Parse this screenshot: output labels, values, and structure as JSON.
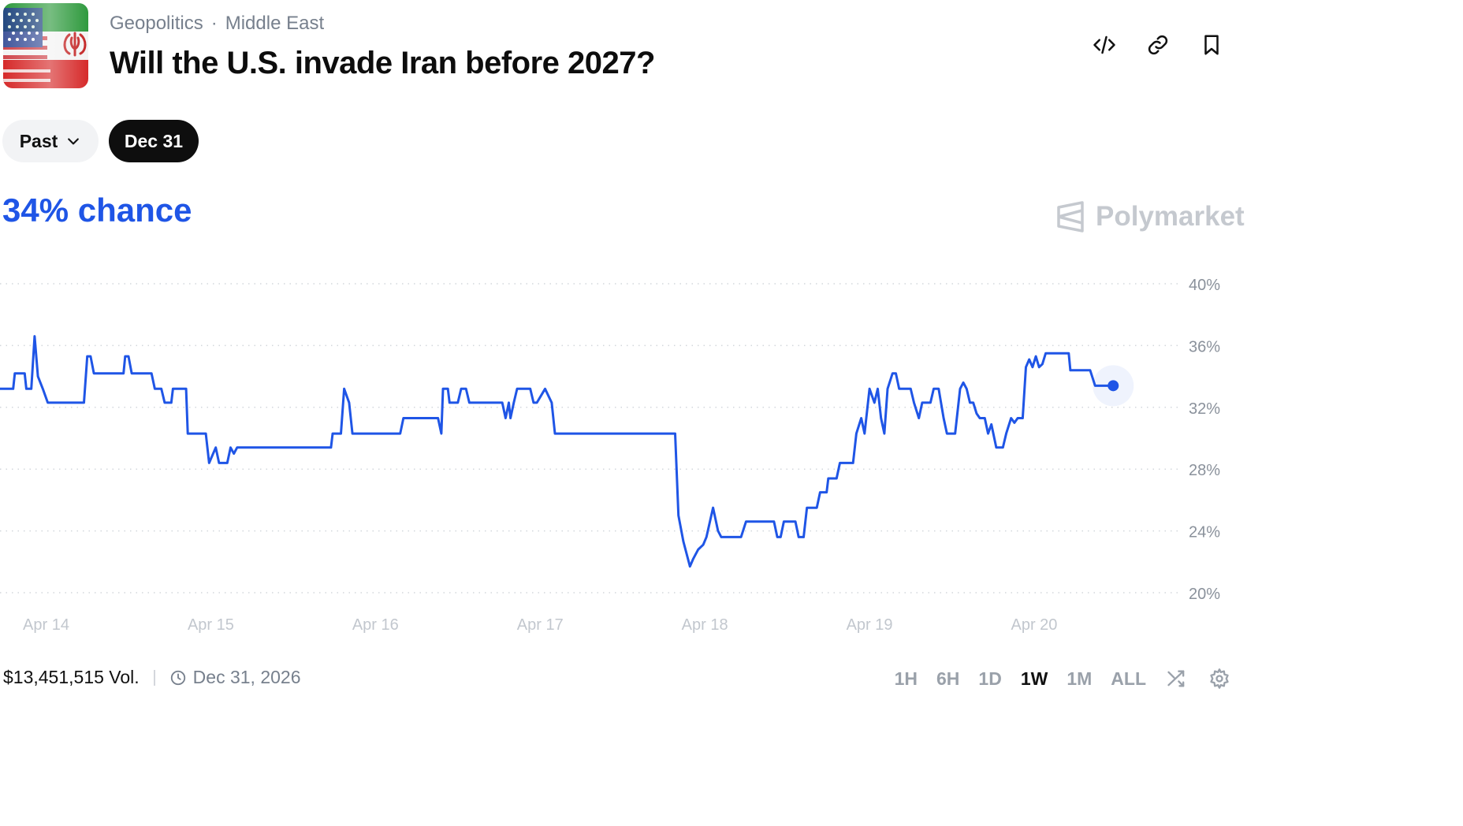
{
  "header": {
    "breadcrumb": [
      "Geopolitics",
      "Middle East"
    ],
    "breadcrumb_separator": "·",
    "title": "Will the U.S. invade Iran before 2027?",
    "actions": [
      {
        "icon": "embed-code-icon"
      },
      {
        "icon": "link-icon"
      },
      {
        "icon": "bookmark-icon"
      }
    ]
  },
  "filters": {
    "past_label": "Past",
    "selected_label": "Dec 31"
  },
  "headline": {
    "chance_label": "34% chance"
  },
  "brand": {
    "name": "Polymarket"
  },
  "chart_data": {
    "type": "line",
    "title": "",
    "xlabel": "",
    "ylabel": "",
    "x_ticks": [
      "Apr 14",
      "Apr 15",
      "Apr 16",
      "Apr 17",
      "Apr 18",
      "Apr 19",
      "Apr 20"
    ],
    "y_ticks": [
      "40%",
      "36%",
      "32%",
      "28%",
      "24%",
      "20%"
    ],
    "ylim": [
      20,
      40
    ],
    "xlim": [
      13.72,
      20.9
    ],
    "grid": true,
    "line_color": "#1f55e6",
    "series": [
      {
        "values": [
          [
            13.72,
            33.2
          ],
          [
            13.8,
            33.2
          ],
          [
            13.81,
            34.2
          ],
          [
            13.87,
            34.2
          ],
          [
            13.88,
            33.2
          ],
          [
            13.91,
            33.2
          ],
          [
            13.93,
            36.6
          ],
          [
            13.95,
            34.0
          ],
          [
            13.98,
            33.2
          ],
          [
            14.01,
            32.3
          ],
          [
            14.23,
            32.3
          ],
          [
            14.25,
            35.3
          ],
          [
            14.27,
            35.3
          ],
          [
            14.29,
            34.2
          ],
          [
            14.47,
            34.2
          ],
          [
            14.48,
            35.3
          ],
          [
            14.5,
            35.3
          ],
          [
            14.52,
            34.2
          ],
          [
            14.64,
            34.2
          ],
          [
            14.66,
            33.2
          ],
          [
            14.7,
            33.2
          ],
          [
            14.72,
            32.3
          ],
          [
            14.76,
            32.3
          ],
          [
            14.77,
            33.2
          ],
          [
            14.85,
            33.2
          ],
          [
            14.86,
            30.3
          ],
          [
            14.97,
            30.3
          ],
          [
            14.99,
            28.4
          ],
          [
            15.03,
            29.4
          ],
          [
            15.05,
            28.4
          ],
          [
            15.1,
            28.4
          ],
          [
            15.12,
            29.4
          ],
          [
            15.14,
            29.0
          ],
          [
            15.16,
            29.4
          ],
          [
            15.73,
            29.4
          ],
          [
            15.74,
            30.3
          ],
          [
            15.79,
            30.3
          ],
          [
            15.81,
            33.2
          ],
          [
            15.84,
            32.3
          ],
          [
            15.86,
            30.3
          ],
          [
            16.15,
            30.3
          ],
          [
            16.17,
            31.3
          ],
          [
            16.38,
            31.3
          ],
          [
            16.4,
            30.3
          ],
          [
            16.41,
            33.2
          ],
          [
            16.44,
            33.2
          ],
          [
            16.45,
            32.3
          ],
          [
            16.5,
            32.3
          ],
          [
            16.52,
            33.2
          ],
          [
            16.55,
            33.2
          ],
          [
            16.57,
            32.3
          ],
          [
            16.77,
            32.3
          ],
          [
            16.79,
            31.3
          ],
          [
            16.81,
            32.3
          ],
          [
            16.82,
            31.3
          ],
          [
            16.84,
            32.3
          ],
          [
            16.86,
            33.2
          ],
          [
            16.94,
            33.2
          ],
          [
            16.96,
            32.3
          ],
          [
            16.98,
            32.3
          ],
          [
            17.03,
            33.2
          ],
          [
            17.07,
            32.3
          ],
          [
            17.09,
            30.3
          ],
          [
            17.82,
            30.3
          ],
          [
            17.84,
            25.0
          ],
          [
            17.87,
            23.3
          ],
          [
            17.91,
            21.7
          ],
          [
            17.93,
            22.2
          ],
          [
            17.96,
            22.8
          ],
          [
            17.99,
            23.1
          ],
          [
            18.01,
            23.6
          ],
          [
            18.05,
            25.5
          ],
          [
            18.08,
            24.0
          ],
          [
            18.1,
            23.6
          ],
          [
            18.22,
            23.6
          ],
          [
            18.25,
            24.6
          ],
          [
            18.42,
            24.6
          ],
          [
            18.44,
            23.6
          ],
          [
            18.46,
            23.6
          ],
          [
            18.48,
            24.6
          ],
          [
            18.55,
            24.6
          ],
          [
            18.57,
            23.6
          ],
          [
            18.6,
            23.6
          ],
          [
            18.62,
            25.5
          ],
          [
            18.68,
            25.5
          ],
          [
            18.7,
            26.5
          ],
          [
            18.74,
            26.5
          ],
          [
            18.75,
            27.4
          ],
          [
            18.8,
            27.4
          ],
          [
            18.82,
            28.4
          ],
          [
            18.9,
            28.4
          ],
          [
            18.92,
            30.3
          ],
          [
            18.95,
            31.3
          ],
          [
            18.97,
            30.3
          ],
          [
            19.0,
            33.2
          ],
          [
            19.03,
            32.3
          ],
          [
            19.05,
            33.2
          ],
          [
            19.07,
            31.3
          ],
          [
            19.09,
            30.3
          ],
          [
            19.11,
            33.2
          ],
          [
            19.14,
            34.2
          ],
          [
            19.16,
            34.2
          ],
          [
            19.18,
            33.2
          ],
          [
            19.25,
            33.2
          ],
          [
            19.27,
            32.3
          ],
          [
            19.3,
            31.3
          ],
          [
            19.32,
            32.3
          ],
          [
            19.37,
            32.3
          ],
          [
            19.39,
            33.2
          ],
          [
            19.42,
            33.2
          ],
          [
            19.45,
            31.3
          ],
          [
            19.47,
            30.3
          ],
          [
            19.52,
            30.3
          ],
          [
            19.55,
            33.2
          ],
          [
            19.57,
            33.6
          ],
          [
            19.59,
            33.2
          ],
          [
            19.61,
            32.3
          ],
          [
            19.63,
            32.3
          ],
          [
            19.65,
            31.6
          ],
          [
            19.67,
            31.3
          ],
          [
            19.7,
            31.3
          ],
          [
            19.72,
            30.3
          ],
          [
            19.74,
            30.9
          ],
          [
            19.77,
            29.4
          ],
          [
            19.81,
            29.4
          ],
          [
            19.83,
            30.3
          ],
          [
            19.86,
            31.3
          ],
          [
            19.88,
            31.0
          ],
          [
            19.9,
            31.3
          ],
          [
            19.93,
            31.3
          ],
          [
            19.95,
            34.6
          ],
          [
            19.97,
            35.1
          ],
          [
            19.99,
            34.6
          ],
          [
            20.01,
            35.3
          ],
          [
            20.03,
            34.6
          ],
          [
            20.05,
            34.8
          ],
          [
            20.07,
            35.5
          ],
          [
            20.21,
            35.5
          ],
          [
            20.22,
            34.4
          ],
          [
            20.34,
            34.4
          ],
          [
            20.37,
            33.4
          ],
          [
            20.48,
            33.4
          ]
        ]
      }
    ],
    "current_point": [
      20.48,
      33.4
    ]
  },
  "footer": {
    "volume": "$13,451,515 Vol.",
    "end_date": "Dec 31, 2026",
    "ranges": [
      "1H",
      "6H",
      "1D",
      "1W",
      "1M",
      "ALL"
    ],
    "active_range": "1W"
  }
}
